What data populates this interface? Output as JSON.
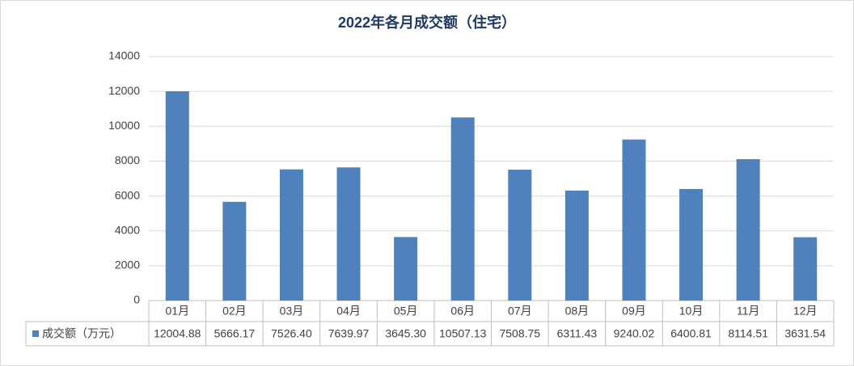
{
  "chart_data": {
    "type": "bar",
    "title": "2022年各月成交额（住宅）",
    "categories": [
      "01月",
      "02月",
      "03月",
      "04月",
      "05月",
      "06月",
      "07月",
      "08月",
      "09月",
      "10月",
      "11月",
      "12月"
    ],
    "series": [
      {
        "name": "成交额（万元）",
        "color": "#4f81bd",
        "values": [
          12004.88,
          5666.17,
          7526.4,
          7639.97,
          3645.3,
          10507.13,
          7508.75,
          6311.43,
          9240.02,
          6400.81,
          8114.51,
          3631.54
        ],
        "value_labels": [
          "12004.88",
          "5666.17",
          "7526.40",
          "7639.97",
          "3645.30",
          "10507.13",
          "7508.75",
          "6311.43",
          "9240.02",
          "6400.81",
          "8114.51",
          "3631.54"
        ]
      }
    ],
    "ylim": [
      0,
      14000
    ],
    "yticks": [
      0,
      2000,
      4000,
      6000,
      8000,
      10000,
      12000,
      14000
    ],
    "grid": true,
    "data_table": true
  }
}
